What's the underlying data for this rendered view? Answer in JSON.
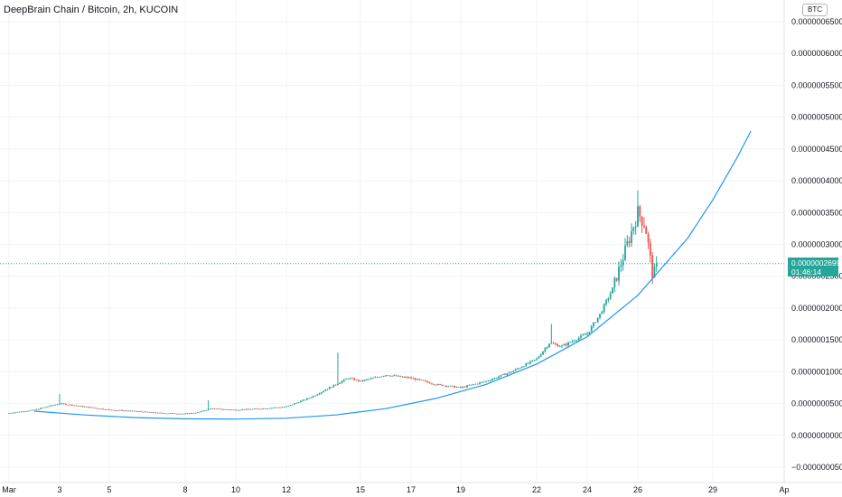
{
  "header": {
    "title": "DeepBrain Chain / Bitcoin, 2h, KUCOIN",
    "currency": "BTC"
  },
  "price_tag": {
    "value": "0.0000002699",
    "countdown": "01:46:14"
  },
  "colors": {
    "up": "#26a69a",
    "down": "#ef5350",
    "curve": "#2196f3",
    "price_line": "#26a69a",
    "grid": "#f0f3fa"
  },
  "chart_data": {
    "type": "candlestick",
    "title": "DeepBrain Chain / Bitcoin, 2h, KUCOIN",
    "y_axis": {
      "position": "right",
      "ylim": [
        -6e-08,
        6.6e-07
      ],
      "ticks": [
        "0.0000006500",
        "0.0000006000",
        "0.0000005500",
        "0.0000005000",
        "0.0000004500",
        "0.0000004000",
        "0.0000003500",
        "0.0000003000",
        "0.0000002500",
        "0.0000002000",
        "0.0000001500",
        "0.0000001000",
        "0.0000000500",
        "0.0000000000",
        "−0.0000000500"
      ],
      "tick_values": [
        6.5e-07,
        6e-07,
        5.5e-07,
        5e-07,
        4.5e-07,
        4e-07,
        3.5e-07,
        3e-07,
        2.5e-07,
        2e-07,
        1.5e-07,
        1e-07,
        5e-08,
        0,
        -5e-08
      ]
    },
    "x_axis": {
      "xlim_days": [
        1,
        31
      ],
      "ticks": [
        "Mar",
        "3",
        "5",
        "8",
        "10",
        "12",
        "15",
        "17",
        "19",
        "22",
        "24",
        "26",
        "29",
        "Ap"
      ],
      "tick_days": [
        1,
        3,
        5,
        8,
        10,
        12,
        15,
        17,
        19,
        22,
        24,
        26,
        29,
        32
      ]
    },
    "last_price": 2.699e-07,
    "grid": true,
    "candle_path": [
      [
        1.0,
        3.5e-08
      ],
      [
        2.0,
        4e-08
      ],
      [
        3.0,
        5e-08
      ],
      [
        4.0,
        4.5e-08
      ],
      [
        5.0,
        4e-08
      ],
      [
        6.0,
        3.8e-08
      ],
      [
        7.0,
        3.5e-08
      ],
      [
        8.0,
        3.4e-08
      ],
      [
        8.5,
        3.6e-08
      ],
      [
        9.0,
        4.2e-08
      ],
      [
        10.0,
        4e-08
      ],
      [
        11.0,
        4.2e-08
      ],
      [
        12.0,
        4.5e-08
      ],
      [
        13.0,
        6e-08
      ],
      [
        14.0,
        8e-08
      ],
      [
        14.5,
        9e-08
      ],
      [
        15.0,
        8.5e-08
      ],
      [
        16.0,
        9.5e-08
      ],
      [
        17.0,
        9e-08
      ],
      [
        18.0,
        8e-08
      ],
      [
        19.0,
        7.5e-08
      ],
      [
        20.0,
        8.5e-08
      ],
      [
        21.0,
        1e-07
      ],
      [
        22.0,
        1.2e-07
      ],
      [
        22.5,
        1.45e-07
      ],
      [
        23.0,
        1.4e-07
      ],
      [
        23.5,
        1.5e-07
      ],
      [
        24.0,
        1.6e-07
      ],
      [
        24.5,
        1.9e-07
      ],
      [
        25.0,
        2.3e-07
      ],
      [
        25.5,
        2.9e-07
      ],
      [
        26.0,
        3.5e-07
      ],
      [
        26.3,
        3.3e-07
      ],
      [
        26.6,
        2.5e-07
      ],
      [
        26.8,
        2.7e-07
      ]
    ],
    "spikes": [
      {
        "day": 14.1,
        "high": 1.3e-07
      },
      {
        "day": 3.0,
        "high": 6.5e-08
      },
      {
        "day": 8.9,
        "high": 5.5e-08
      },
      {
        "day": 22.6,
        "high": 1.75e-07
      },
      {
        "day": 26.0,
        "high": 3.85e-07
      }
    ],
    "curve": [
      [
        2.0,
        3.8e-08
      ],
      [
        4.0,
        3.2e-08
      ],
      [
        6.0,
        2.8e-08
      ],
      [
        8.0,
        2.6e-08
      ],
      [
        10.0,
        2.55e-08
      ],
      [
        12.0,
        2.7e-08
      ],
      [
        14.0,
        3.2e-08
      ],
      [
        16.0,
        4.2e-08
      ],
      [
        18.0,
        5.8e-08
      ],
      [
        20.0,
        8e-08
      ],
      [
        22.0,
        1.12e-07
      ],
      [
        24.0,
        1.55e-07
      ],
      [
        26.0,
        2.2e-07
      ],
      [
        28.0,
        3.1e-07
      ],
      [
        29.0,
        3.7e-07
      ],
      [
        30.0,
        4.35e-07
      ],
      [
        30.6,
        4.78e-07
      ]
    ]
  }
}
